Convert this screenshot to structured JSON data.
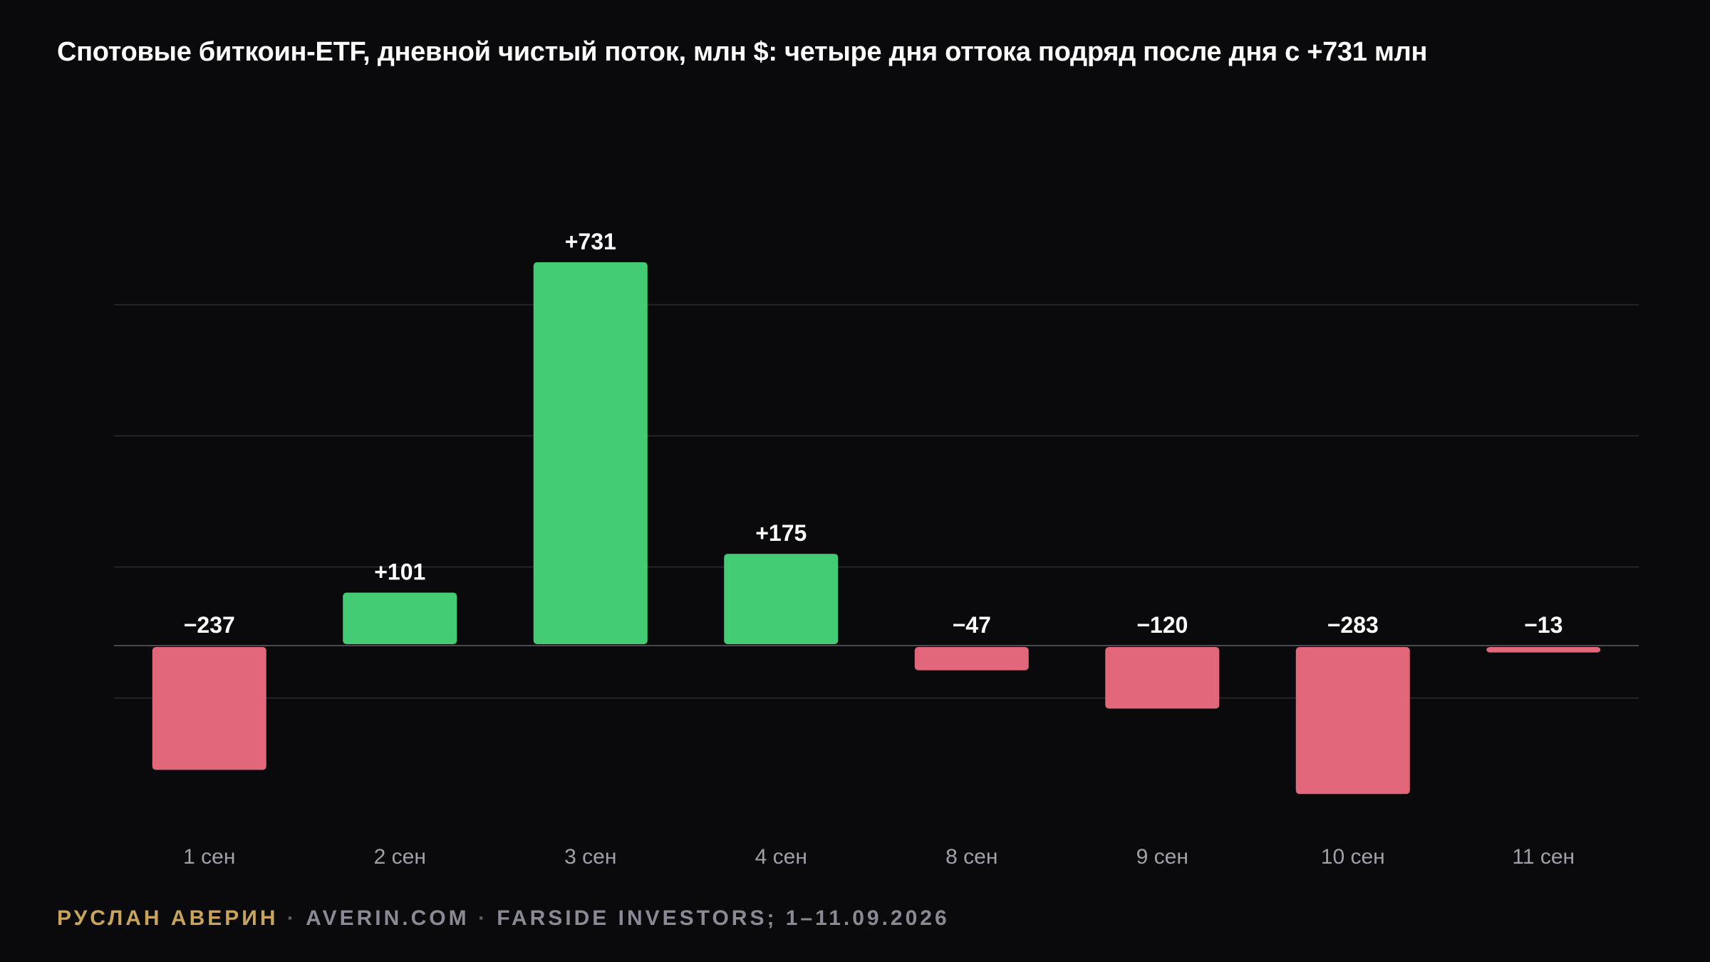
{
  "title": "Спотовые биткоин-ETF, дневной чистый поток, млн $: четыре дня оттока подряд после дня с +731 млн",
  "footer": {
    "author": "РУСЛАН АВЕРИН",
    "separator": " · ",
    "site": "AVERIN.COM",
    "source": "FARSIDE INVESTORS; 1–11.09.2026"
  },
  "colors": {
    "background": "#0a0a0d",
    "positive": "#44cc74",
    "negative": "#e3677a",
    "grid": "#24242b",
    "zero_line": "#4a4a52",
    "value_label": "#ffffff",
    "tick_label": "#a0a0a8",
    "author": "#c9a55c"
  },
  "chart_data": {
    "type": "bar",
    "categories": [
      "1 сен",
      "2 сен",
      "3 сен",
      "4 сен",
      "8 сен",
      "9 сен",
      "10 сен",
      "11 сен"
    ],
    "values": [
      -237,
      101,
      731,
      175,
      -47,
      -120,
      -283,
      -13
    ],
    "value_labels": [
      "−237",
      "+101",
      "+731",
      "+175",
      "−47",
      "−120",
      "−283",
      "−13"
    ],
    "title": "Спотовые биткоин-ETF, дневной чистый поток, млн $: четыре дня оттока подряд после дня с +731 млн",
    "xlabel": "",
    "ylabel": "",
    "ylim": [
      -300,
      750
    ],
    "gridlines": [
      -100,
      150,
      400,
      650
    ],
    "grid": true,
    "legend": "none"
  }
}
